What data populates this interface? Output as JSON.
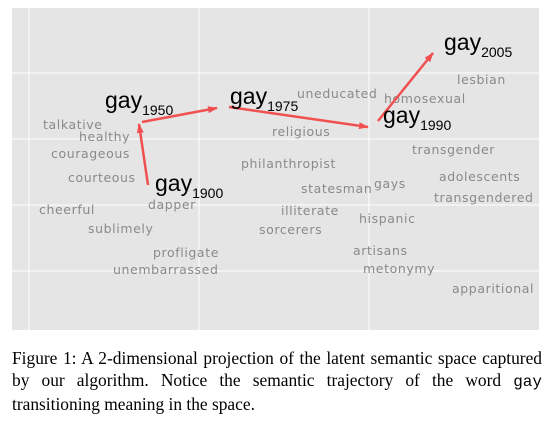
{
  "figure": {
    "background": "#e5e5e5",
    "grid_color": "#ffffff",
    "arrow_color": "#f05050",
    "word_color": "#8a8a8a",
    "target_word": "gay",
    "trajectory": [
      {
        "label": "gay",
        "sub": "1900"
      },
      {
        "label": "gay",
        "sub": "1950"
      },
      {
        "label": "gay",
        "sub": "1975"
      },
      {
        "label": "gay",
        "sub": "1990"
      },
      {
        "label": "gay",
        "sub": "2005"
      }
    ],
    "words": [
      "talkative",
      "healthy",
      "courageous",
      "courteous",
      "cheerful",
      "sublimely",
      "dapper",
      "profligate",
      "unembarrassed",
      "philanthropist",
      "religious",
      "uneducated",
      "homosexual",
      "statesman",
      "illiterate",
      "sorcerers",
      "gays",
      "hispanic",
      "artisans",
      "metonymy",
      "lesbian",
      "transgender",
      "adolescents",
      "transgendered",
      "apparitional"
    ]
  },
  "caption": {
    "prefix": "Figure 1:  A 2-dimensional projection of the latent semantic space captured by our algorithm.  Notice the semantic trajectory of the word ",
    "code": "gay",
    "suffix": " transitioning meaning in the space."
  }
}
